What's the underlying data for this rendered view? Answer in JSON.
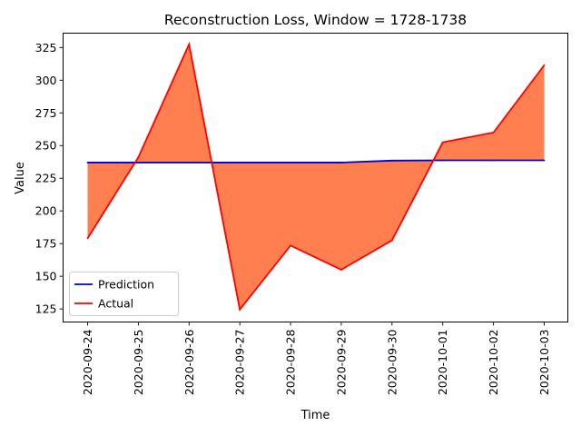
{
  "chart_data": {
    "type": "line",
    "title": "Reconstruction Loss, Window = 1728-1738",
    "xlabel": "Time",
    "ylabel": "Value",
    "x": [
      "2020-09-24",
      "2020-09-25",
      "2020-09-26",
      "2020-09-27",
      "2020-09-28",
      "2020-09-29",
      "2020-09-30",
      "2020-10-01",
      "2020-10-02",
      "2020-10-03"
    ],
    "series": [
      {
        "name": "Prediction",
        "color": "#0000cc",
        "values": [
          237,
          237,
          237,
          237,
          237,
          237,
          238.5,
          238.7,
          238.7,
          238.7
        ]
      },
      {
        "name": "Actual",
        "color": "#ff0000",
        "values": [
          179,
          241,
          327.5,
          124.5,
          173.5,
          155,
          177.5,
          252.5,
          260,
          311.5
        ]
      }
    ],
    "fill_between": {
      "color": "#ff7f50",
      "series": [
        "Prediction",
        "Actual"
      ]
    },
    "ylim": [
      115,
      336
    ],
    "yticks": [
      125,
      150,
      175,
      200,
      225,
      250,
      275,
      300,
      325
    ],
    "legend": "lower-left",
    "grid": false
  }
}
